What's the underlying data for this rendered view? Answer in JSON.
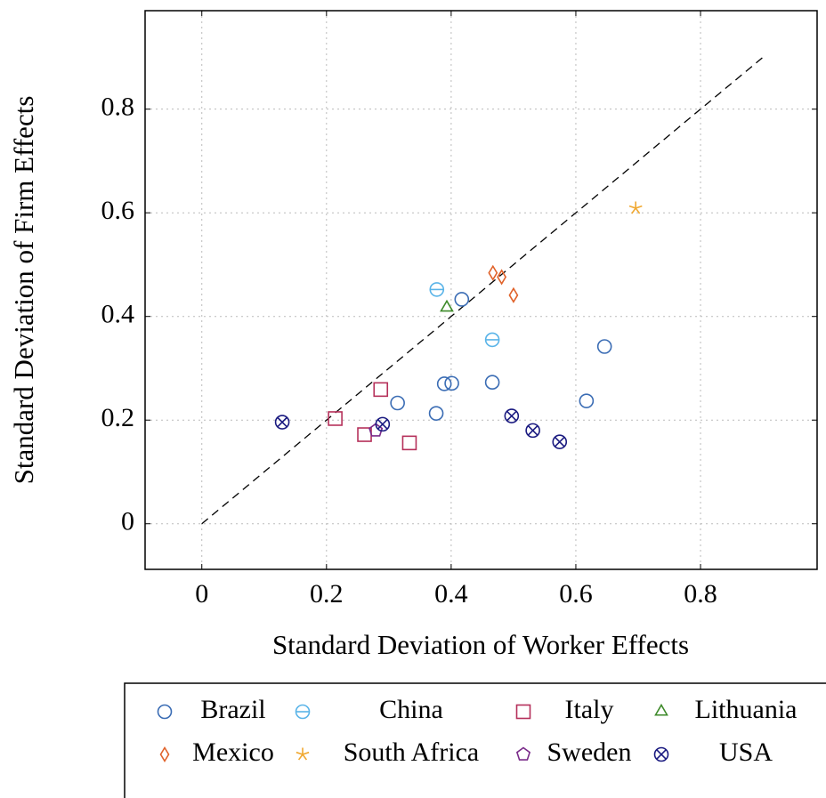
{
  "chart_data": {
    "type": "scatter",
    "xlabel": "Standard Deviation of Worker Effects",
    "ylabel": "Standard Deviation of Firm Effects",
    "xlim": [
      -0.091,
      0.987
    ],
    "ylim": [
      -0.088,
      0.99
    ],
    "xticks": [
      0,
      0.2,
      0.4,
      0.6,
      0.8
    ],
    "yticks": [
      0,
      0.2,
      0.4,
      0.6,
      0.8
    ],
    "grid": true,
    "diagonal": {
      "x": [
        0,
        0.9
      ],
      "y": [
        0,
        0.9
      ]
    },
    "series": [
      {
        "name": "Brazil",
        "color": "#3a6cb4",
        "marker": "circle",
        "x": [
          0.417,
          0.314,
          0.389,
          0.401,
          0.376,
          0.466,
          0.646,
          0.617
        ],
        "values": [
          0.433,
          0.233,
          0.27,
          0.271,
          0.213,
          0.273,
          0.342,
          0.237
        ]
      },
      {
        "name": "China",
        "color": "#5ab4e8",
        "marker": "circle-minus",
        "x": [
          0.377,
          0.466
        ],
        "values": [
          0.452,
          0.355
        ]
      },
      {
        "name": "Italy",
        "color": "#b5305a",
        "marker": "square",
        "x": [
          0.214,
          0.287,
          0.261,
          0.333
        ],
        "values": [
          0.203,
          0.259,
          0.172,
          0.156
        ]
      },
      {
        "name": "Lithuania",
        "color": "#3e8a2a",
        "marker": "triangle",
        "x": [
          0.393
        ],
        "values": [
          0.417
        ]
      },
      {
        "name": "Mexico",
        "color": "#e0622a",
        "marker": "diamond",
        "x": [
          0.467,
          0.481,
          0.5
        ],
        "values": [
          0.484,
          0.476,
          0.441
        ]
      },
      {
        "name": "South Africa",
        "color": "#f0a830",
        "marker": "star",
        "x": [
          0.696
        ],
        "values": [
          0.609
        ]
      },
      {
        "name": "Sweden",
        "color": "#7a2b8a",
        "marker": "pentagon",
        "x": [
          0.279
        ],
        "values": [
          0.18
        ]
      },
      {
        "name": "USA",
        "color": "#1a1a80",
        "marker": "circle-x",
        "x": [
          0.129,
          0.29,
          0.497,
          0.531,
          0.574
        ],
        "values": [
          0.196,
          0.192,
          0.208,
          0.18,
          0.158
        ]
      }
    ]
  }
}
